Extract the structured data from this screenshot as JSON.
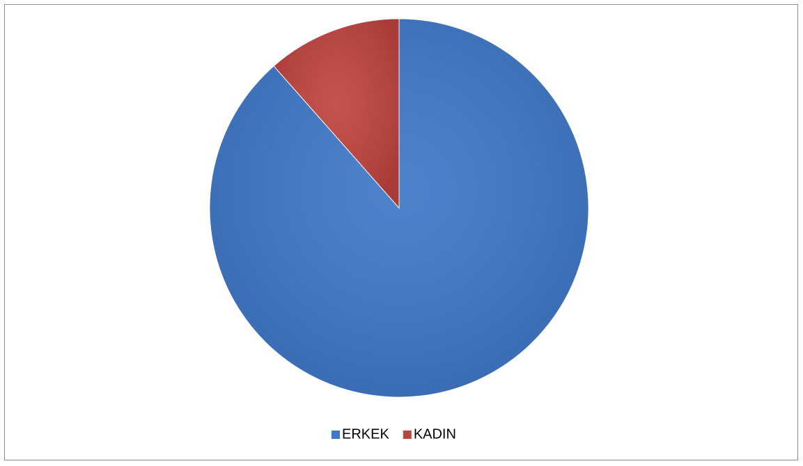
{
  "chart_data": {
    "type": "pie",
    "categories": [
      "ERKEK",
      "KADIN"
    ],
    "values": [
      88.5,
      11.5
    ],
    "colors": [
      "#3f78c8",
      "#c0433f"
    ],
    "legend": "bottom"
  }
}
